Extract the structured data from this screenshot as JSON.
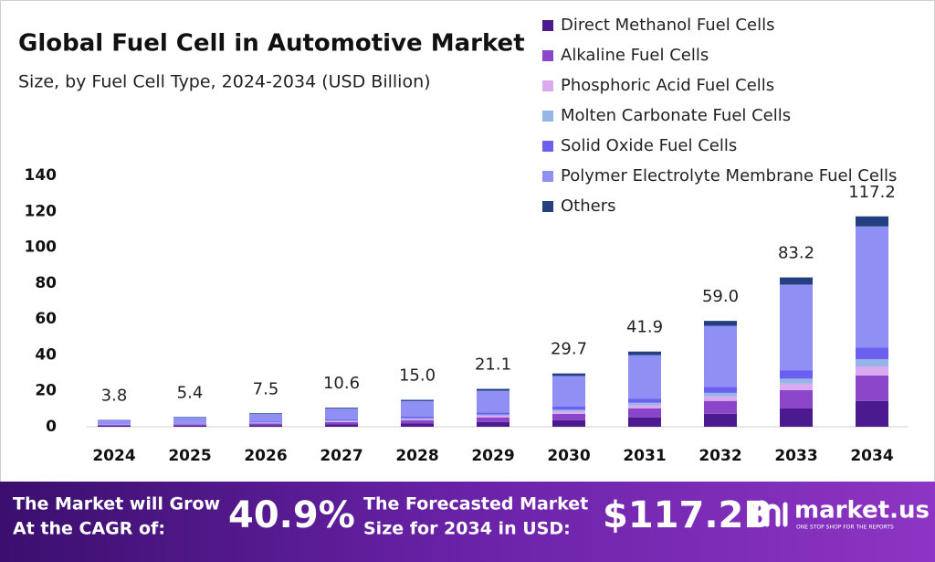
{
  "chart_data": {
    "type": "stacked-bar",
    "title": "Global Fuel Cell in Automotive Market",
    "subtitle": "Size, by Fuel Cell Type, 2024-2034 (USD Billion)",
    "categories": [
      "2024",
      "2025",
      "2026",
      "2027",
      "2028",
      "2029",
      "2030",
      "2031",
      "2032",
      "2033",
      "2034"
    ],
    "series": [
      {
        "name": "Direct Methanol Fuel Cells",
        "color": "#4b1a8e",
        "values": [
          0.5,
          0.7,
          0.9,
          1.3,
          1.8,
          2.6,
          3.6,
          5.1,
          7.2,
          10.2,
          14.3
        ]
      },
      {
        "name": "Alkaline Fuel Cells",
        "color": "#8a45c9",
        "values": [
          0.5,
          0.7,
          0.9,
          1.3,
          1.8,
          2.6,
          3.6,
          5.1,
          7.2,
          10.2,
          14.3
        ]
      },
      {
        "name": "Phosphoric Acid Fuel Cells",
        "color": "#d9aaef",
        "values": [
          0.2,
          0.2,
          0.3,
          0.5,
          0.7,
          0.9,
          1.3,
          1.8,
          2.5,
          3.6,
          5.0
        ]
      },
      {
        "name": "Molten Carbonate Fuel Cells",
        "color": "#95b5e6",
        "values": [
          0.1,
          0.2,
          0.3,
          0.4,
          0.5,
          0.7,
          1.0,
          1.4,
          2.0,
          2.8,
          4.0
        ]
      },
      {
        "name": "Solid Oxide Fuel Cells",
        "color": "#6b5ff0",
        "values": [
          0.2,
          0.3,
          0.4,
          0.6,
          0.8,
          1.2,
          1.7,
          2.3,
          3.3,
          4.7,
          6.6
        ]
      },
      {
        "name": "Polymer Electrolyte Membrane Fuel Cells",
        "color": "#9090f4",
        "values": [
          2.1,
          3.0,
          4.3,
          6.0,
          8.7,
          12.1,
          17.1,
          24.2,
          34.0,
          47.7,
          67.4
        ]
      },
      {
        "name": "Others",
        "color": "#243f80",
        "values": [
          0.2,
          0.3,
          0.4,
          0.5,
          0.7,
          1.0,
          1.4,
          2.0,
          2.8,
          4.0,
          5.6
        ]
      }
    ],
    "totals": [
      3.8,
      5.4,
      7.5,
      10.6,
      15.0,
      21.1,
      29.7,
      41.9,
      59.0,
      83.2,
      117.2
    ],
    "total_labels": [
      "3.8",
      "5.4",
      "7.5",
      "10.6",
      "15.0",
      "21.1",
      "29.7",
      "41.9",
      "59.0",
      "83.2",
      "117.2"
    ],
    "ylim": [
      0,
      140
    ],
    "yticks": [
      0,
      20,
      40,
      60,
      80,
      100,
      120,
      140
    ],
    "grid": false
  },
  "footer": {
    "cagr_text": [
      "The Market will Grow",
      "At the CAGR of:"
    ],
    "cagr_value": "40.9%",
    "forecast_text": [
      "The Forecasted Market",
      "Size for 2034 in USD:"
    ],
    "forecast_value": "$117.2B",
    "brand": "market.us",
    "tagline": "ONE STOP SHOP FOR THE REPORTS"
  }
}
